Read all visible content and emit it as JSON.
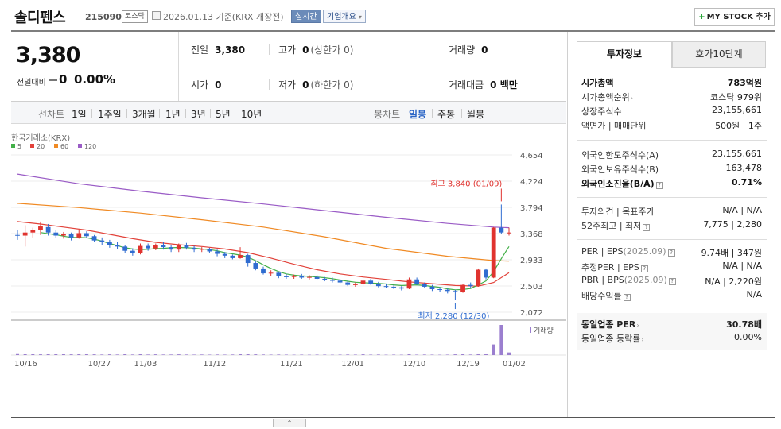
{
  "header": {
    "name": "솔디펜스",
    "code": "215090",
    "market": "코스닥",
    "date": "2026.01.13 기준(KRX 개장전)",
    "live": "실시간",
    "corp": "기업개요",
    "mystock": "MY STOCK 추가"
  },
  "price": {
    "current": "3,380",
    "change_label": "전일대비",
    "change": "0",
    "percent": "0.00%"
  },
  "quote": {
    "prev_label": "전일",
    "prev": "3,380",
    "high_label": "고가",
    "high": "0",
    "high_sub": "(상한가 0)",
    "volume_label": "거래량",
    "volume": "0",
    "open_label": "시가",
    "open": "0",
    "low_label": "저가",
    "low": "0",
    "low_sub": "(하한가 0)",
    "amount_label": "거래대금",
    "amount": "0 백만"
  },
  "periods": {
    "label": "선차트",
    "items": [
      "1일",
      "1주일",
      "3개월",
      "1년",
      "3년",
      "5년",
      "10년"
    ],
    "candle_label": "봉차트",
    "candle_items": [
      "일봉",
      "주봉",
      "월봉"
    ],
    "active": "일봉"
  },
  "chart_data": {
    "type": "candlestick",
    "source": "한국거래소(KRX)",
    "legend": [
      {
        "name": "5",
        "color": "#43b049"
      },
      {
        "name": "20",
        "color": "#e2423a"
      },
      {
        "name": "60",
        "color": "#f08a24"
      },
      {
        "name": "120",
        "color": "#9a5cc6"
      }
    ],
    "y_ticks": [
      "4,654",
      "4,224",
      "3,794",
      "3,368",
      "2,933",
      "2,503",
      "2,072"
    ],
    "ylim": [
      2072,
      4654
    ],
    "x_ticks": [
      "10/16",
      "10/27",
      "11/03",
      "11/12",
      "11/21",
      "12/01",
      "12/10",
      "12/19",
      "01/02"
    ],
    "high_annotation": "최고 3,840 (01/09)",
    "low_annotation": "최저 2,280 (12/30)",
    "volume_label": "거래량",
    "candles": [
      [
        3340,
        3420,
        3260,
        3330
      ],
      [
        3330,
        3500,
        3150,
        3380
      ],
      [
        3380,
        3460,
        3300,
        3420
      ],
      [
        3420,
        3560,
        3340,
        3480
      ],
      [
        3470,
        3520,
        3330,
        3380
      ],
      [
        3380,
        3420,
        3290,
        3330
      ],
      [
        3330,
        3390,
        3280,
        3360
      ],
      [
        3360,
        3380,
        3250,
        3300
      ],
      [
        3300,
        3420,
        3280,
        3370
      ],
      [
        3370,
        3400,
        3290,
        3320
      ],
      [
        3320,
        3340,
        3220,
        3250
      ],
      [
        3250,
        3300,
        3180,
        3220
      ],
      [
        3220,
        3260,
        3130,
        3180
      ],
      [
        3180,
        3220,
        3110,
        3150
      ],
      [
        3150,
        3170,
        3040,
        3080
      ],
      [
        3080,
        3120,
        3000,
        3040
      ],
      [
        3040,
        3200,
        3020,
        3160
      ],
      [
        3160,
        3200,
        3080,
        3120
      ],
      [
        3120,
        3200,
        3090,
        3180
      ],
      [
        3180,
        3230,
        3100,
        3140
      ],
      [
        3140,
        3170,
        3060,
        3100
      ],
      [
        3100,
        3200,
        3060,
        3170
      ],
      [
        3170,
        3210,
        3100,
        3130
      ],
      [
        3130,
        3160,
        3060,
        3100
      ],
      [
        3100,
        3140,
        3060,
        3110
      ],
      [
        3110,
        3130,
        3040,
        3070
      ],
      [
        3070,
        3100,
        2990,
        3030
      ],
      [
        3030,
        3060,
        2960,
        3000
      ],
      [
        3000,
        3020,
        2940,
        2960
      ],
      [
        2960,
        3140,
        2950,
        3010
      ],
      [
        3010,
        3030,
        2820,
        2880
      ],
      [
        2880,
        2920,
        2760,
        2790
      ],
      [
        2790,
        2820,
        2690,
        2710
      ],
      [
        2710,
        2760,
        2660,
        2720
      ],
      [
        2720,
        2740,
        2630,
        2660
      ],
      [
        2660,
        2700,
        2620,
        2650
      ],
      [
        2650,
        2690,
        2620,
        2670
      ],
      [
        2670,
        2700,
        2620,
        2640
      ],
      [
        2640,
        2680,
        2610,
        2650
      ],
      [
        2650,
        2680,
        2600,
        2620
      ],
      [
        2620,
        2650,
        2580,
        2600
      ],
      [
        2600,
        2640,
        2560,
        2590
      ],
      [
        2590,
        2620,
        2540,
        2560
      ],
      [
        2560,
        2590,
        2500,
        2520
      ],
      [
        2520,
        2560,
        2490,
        2530
      ],
      [
        2530,
        2610,
        2510,
        2590
      ],
      [
        2590,
        2620,
        2520,
        2540
      ],
      [
        2540,
        2570,
        2480,
        2500
      ],
      [
        2500,
        2530,
        2470,
        2490
      ],
      [
        2490,
        2520,
        2450,
        2480
      ],
      [
        2480,
        2500,
        2430,
        2460
      ],
      [
        2460,
        2640,
        2450,
        2610
      ],
      [
        2610,
        2640,
        2520,
        2540
      ],
      [
        2540,
        2560,
        2470,
        2490
      ],
      [
        2490,
        2520,
        2420,
        2450
      ],
      [
        2450,
        2480,
        2410,
        2440
      ],
      [
        2440,
        2460,
        2380,
        2420
      ],
      [
        2420,
        2440,
        2280,
        2400
      ],
      [
        2400,
        2540,
        2390,
        2520
      ],
      [
        2520,
        2560,
        2470,
        2500
      ],
      [
        2500,
        2790,
        2490,
        2770
      ],
      [
        2770,
        2790,
        2610,
        2640
      ],
      [
        2640,
        3470,
        2630,
        3460
      ],
      [
        3460,
        3840,
        3360,
        3380
      ],
      [
        3380,
        3460,
        3330,
        3380
      ]
    ],
    "volumes": [
      20,
      14,
      10,
      8,
      16,
      12,
      10,
      8,
      12,
      10,
      8,
      6,
      8,
      6,
      10,
      6,
      12,
      6,
      8,
      6,
      6,
      8,
      6,
      5,
      6,
      5,
      6,
      5,
      6,
      10,
      12,
      8,
      6,
      5,
      6,
      5,
      4,
      5,
      4,
      5,
      5,
      4,
      5,
      6,
      5,
      8,
      5,
      6,
      4,
      5,
      4,
      12,
      5,
      6,
      5,
      4,
      5,
      8,
      10,
      6,
      18,
      14,
      120,
      340,
      30
    ],
    "volume_max": 340,
    "ma": {
      "ma5": [
        [
          3,
          3380
        ],
        [
          4,
          3360
        ],
        [
          5,
          3345
        ],
        [
          6,
          3320
        ],
        [
          7,
          3300
        ],
        [
          8,
          3300
        ],
        [
          9,
          3295
        ],
        [
          10,
          3270
        ],
        [
          11,
          3240
        ],
        [
          12,
          3200
        ],
        [
          13,
          3165
        ],
        [
          14,
          3130
        ],
        [
          15,
          3110
        ],
        [
          16,
          3100
        ],
        [
          17,
          3105
        ],
        [
          18,
          3115
        ],
        [
          19,
          3120
        ],
        [
          20,
          3130
        ],
        [
          21,
          3135
        ],
        [
          22,
          3130
        ],
        [
          23,
          3125
        ],
        [
          24,
          3110
        ],
        [
          25,
          3100
        ],
        [
          26,
          3080
        ],
        [
          27,
          3050
        ],
        [
          28,
          3030
        ],
        [
          29,
          3010
        ],
        [
          30,
          2975
        ],
        [
          31,
          2920
        ],
        [
          32,
          2850
        ],
        [
          33,
          2790
        ],
        [
          34,
          2740
        ],
        [
          35,
          2700
        ],
        [
          36,
          2680
        ],
        [
          37,
          2668
        ],
        [
          38,
          2660
        ],
        [
          39,
          2650
        ],
        [
          40,
          2638
        ],
        [
          41,
          2622
        ],
        [
          42,
          2600
        ],
        [
          43,
          2580
        ],
        [
          44,
          2563
        ],
        [
          45,
          2556
        ],
        [
          46,
          2550
        ],
        [
          47,
          2545
        ],
        [
          48,
          2535
        ],
        [
          49,
          2520
        ],
        [
          50,
          2510
        ],
        [
          51,
          2515
        ],
        [
          52,
          2520
        ],
        [
          53,
          2510
        ],
        [
          54,
          2495
        ],
        [
          55,
          2480
        ],
        [
          56,
          2455
        ],
        [
          57,
          2440
        ],
        [
          58,
          2445
        ],
        [
          59,
          2460
        ],
        [
          60,
          2520
        ],
        [
          61,
          2585
        ],
        [
          62,
          2740
        ],
        [
          63,
          2950
        ],
        [
          64,
          3150
        ]
      ],
      "ma20": [
        [
          0,
          3560
        ],
        [
          3,
          3520
        ],
        [
          6,
          3470
        ],
        [
          9,
          3420
        ],
        [
          12,
          3350
        ],
        [
          15,
          3280
        ],
        [
          18,
          3220
        ],
        [
          21,
          3180
        ],
        [
          24,
          3150
        ],
        [
          27,
          3110
        ],
        [
          30,
          3050
        ],
        [
          33,
          2960
        ],
        [
          36,
          2860
        ],
        [
          39,
          2770
        ],
        [
          42,
          2700
        ],
        [
          45,
          2650
        ],
        [
          48,
          2610
        ],
        [
          51,
          2570
        ],
        [
          54,
          2540
        ],
        [
          57,
          2510
        ],
        [
          60,
          2500
        ],
        [
          62,
          2560
        ],
        [
          64,
          2720
        ]
      ],
      "ma60": [
        [
          0,
          3860
        ],
        [
          8,
          3790
        ],
        [
          16,
          3700
        ],
        [
          24,
          3590
        ],
        [
          32,
          3470
        ],
        [
          40,
          3310
        ],
        [
          48,
          3120
        ],
        [
          56,
          2990
        ],
        [
          62,
          2920
        ],
        [
          64,
          2910
        ]
      ],
      "ma120": [
        [
          0,
          4340
        ],
        [
          8,
          4180
        ],
        [
          16,
          4060
        ],
        [
          24,
          3950
        ],
        [
          32,
          3850
        ],
        [
          40,
          3740
        ],
        [
          48,
          3630
        ],
        [
          56,
          3530
        ],
        [
          62,
          3470
        ],
        [
          64,
          3460
        ]
      ]
    }
  },
  "invest": {
    "tab_info": "투자정보",
    "tab_quote": "호가10단계",
    "market_cap_label": "시가총액",
    "market_cap": "783억원",
    "cap_rank_label": "시가총액순위",
    "cap_rank": "코스닥 979위",
    "shares_label": "상장주식수",
    "shares": "23,155,661",
    "par_label": "액면가 | 매매단위",
    "par": "500원 | 1주",
    "foreign_limit_label": "외국인한도주식수(A)",
    "foreign_limit": "23,155,661",
    "foreign_hold_label": "외국인보유주식수(B)",
    "foreign_hold": "163,478",
    "foreign_rate_label": "외국인소진율(B/A)",
    "foreign_rate": "0.71%",
    "opinion_label": "투자의견 | 목표주가",
    "opinion": "N/A | N/A",
    "week52_label": "52주최고 | 최저",
    "week52": "7,775 | 2,280",
    "per_label": "PER | EPS",
    "per_period": "(2025.09)",
    "per": "9.74배 | 347원",
    "est_per_label": "추정PER | EPS",
    "est_per": "N/A | N/A",
    "pbr_label": "PBR | BPS",
    "pbr_period": "(2025.09)",
    "pbr": "N/A | 2,220원",
    "div_label": "배당수익률",
    "div": "N/A",
    "ind_per_label": "동일업종 PER",
    "ind_per": "30.78배",
    "ind_rate_label": "동일업종 등락률",
    "ind_rate": "0.00%"
  },
  "colors": {
    "up": "#e0332f",
    "down": "#2f6cd0",
    "active_tab": "#2b65c6"
  }
}
